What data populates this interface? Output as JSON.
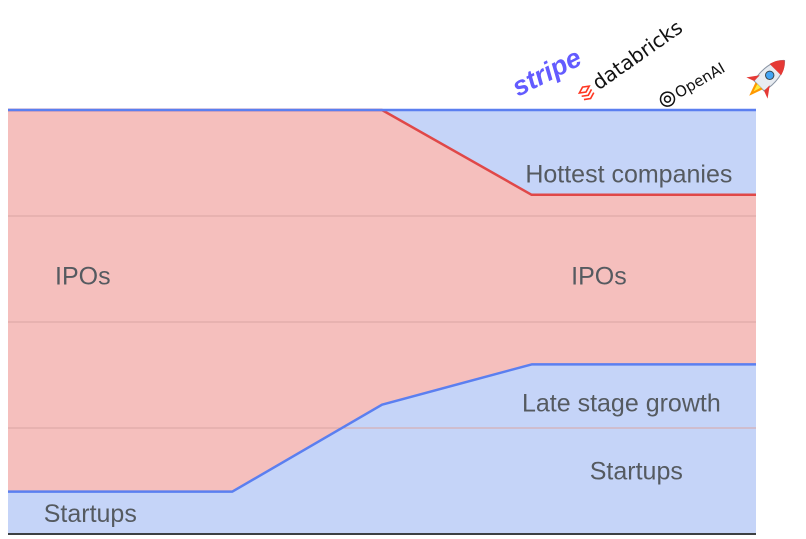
{
  "chart_data": {
    "type": "area",
    "title": "",
    "xlabel": "",
    "ylabel": "",
    "ylim": [
      0,
      100
    ],
    "grid": true,
    "legend": "none",
    "logos": [
      {
        "name": "stripe",
        "text": "stripe"
      },
      {
        "name": "databricks",
        "text": "databricks"
      },
      {
        "name": "openai",
        "text": "OpenAI"
      },
      {
        "name": "rocket",
        "text": "🚀"
      }
    ],
    "x": [
      0,
      30,
      50,
      70,
      100
    ],
    "series": [
      {
        "name": "Startups",
        "values": [
          10,
          10,
          30.5,
          40,
          40
        ]
      },
      {
        "name": "IPOs",
        "values": [
          100,
          100,
          100,
          80,
          80
        ]
      },
      {
        "name": "Hottest companies",
        "values": [
          100,
          100,
          100,
          100,
          100
        ]
      }
    ],
    "labels": [
      {
        "text": "Startups",
        "x": 11,
        "y": 5,
        "series": "Startups"
      },
      {
        "text": "IPOs",
        "x": 10,
        "y": 61,
        "series": "IPOs"
      },
      {
        "text": "IPOs",
        "x": 79,
        "y": 61,
        "series": "IPOs"
      },
      {
        "text": "Late stage growth",
        "x": 82,
        "y": 31,
        "series": "Startups"
      },
      {
        "text": "Startups",
        "x": 84,
        "y": 15,
        "series": "Startups"
      },
      {
        "text": "Hottest companies",
        "x": 83,
        "y": 85,
        "series": "Hottest companies"
      }
    ],
    "colors": {
      "blue_fill": "#c5d4f8",
      "red_fill": "#f5bfbd",
      "blue_line": "#5b7ff0",
      "red_line": "#e04848",
      "grid": "#d9a6a3",
      "axis": "#3c4043"
    }
  }
}
